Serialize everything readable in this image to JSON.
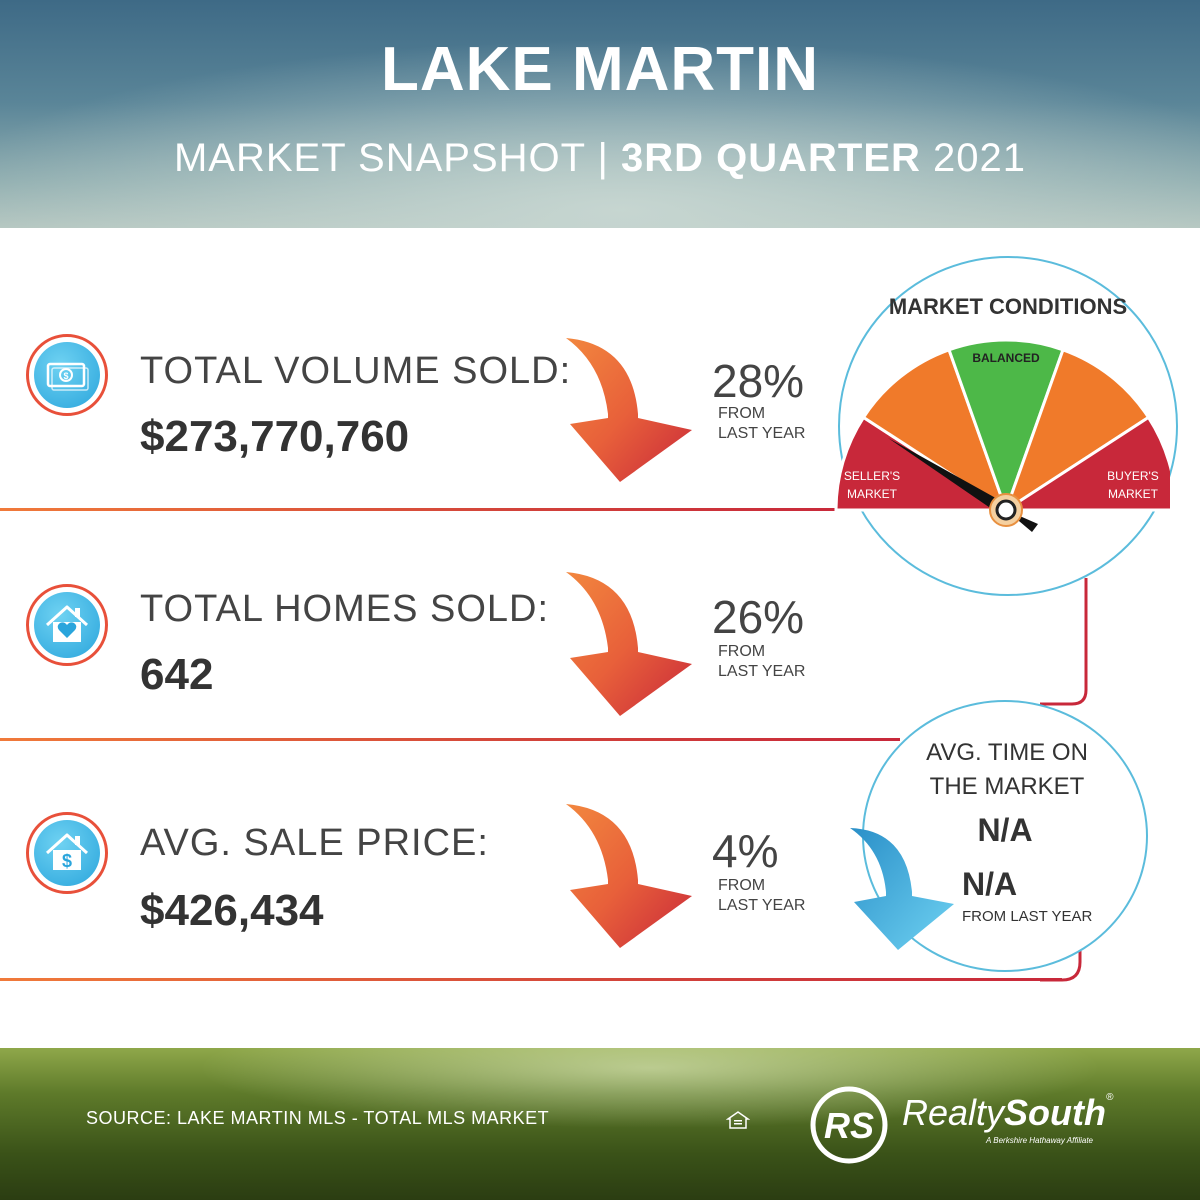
{
  "header": {
    "title": "LAKE MARTIN",
    "subtitle_prefix": "MARKET SNAPSHOT | ",
    "subtitle_bold": "3RD QUARTER",
    "subtitle_suffix": " 2021"
  },
  "stats": [
    {
      "label": "TOTAL VOLUME SOLD:",
      "value": "$273,770,760",
      "change": "28%",
      "from_line1": "FROM",
      "from_line2": "LAST YEAR",
      "icon": "money-icon",
      "trend": "down"
    },
    {
      "label": "TOTAL HOMES SOLD:",
      "value": "642",
      "change": "26%",
      "from_line1": "FROM",
      "from_line2": "LAST YEAR",
      "icon": "house-heart-icon",
      "trend": "down"
    },
    {
      "label": "AVG. SALE PRICE:",
      "value": "$426,434",
      "change": "4%",
      "from_line1": "FROM",
      "from_line2": "LAST YEAR",
      "icon": "house-dollar-icon",
      "trend": "down"
    }
  ],
  "market_conditions": {
    "title": "MARKET CONDITIONS",
    "segments": [
      "SELLER'S MARKET",
      "BALANCED",
      "BUYER'S MARKET"
    ],
    "sellers_line1": "SELLER'S",
    "sellers_line2": "MARKET",
    "balanced": "BALANCED",
    "buyers_line1": "BUYER'S",
    "buyers_line2": "MARKET",
    "indicator": "SELLER'S MARKET",
    "colors": {
      "seller": "#c8283a",
      "mid": "#f07a2a",
      "balanced": "#4db848",
      "buyer": "#c8283a"
    }
  },
  "time_on_market": {
    "title_line1": "AVG. TIME ON",
    "title_line2": "THE MARKET",
    "value": "N/A",
    "change": "N/A",
    "from": "FROM LAST YEAR",
    "trend": "down"
  },
  "footer": {
    "source": "SOURCE: LAKE MARTIN MLS - TOTAL MLS MARKET",
    "brand_light": "Realty",
    "brand_bold": "South",
    "brand_mark": "®",
    "tagline": "A Berkshire Hathaway Affiliate",
    "logo_initials": "RS"
  },
  "colors": {
    "accent_orange": "#f07a3a",
    "accent_red": "#c8283a",
    "accent_blue": "#2aa5dc"
  }
}
